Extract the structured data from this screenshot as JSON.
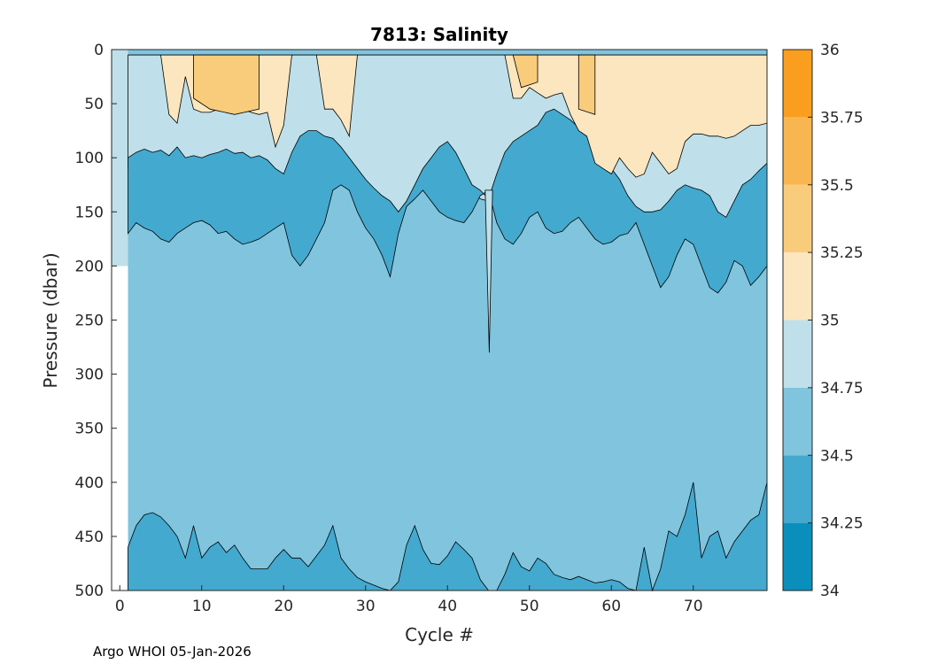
{
  "credit": "Argo WHOI 05-Jan-2026",
  "chart_data": {
    "type": "contourf",
    "title": "7813:  Salinity",
    "xlabel": "Cycle #",
    "ylabel": "Pressure (dbar)",
    "xlim": [
      -1,
      79
    ],
    "ylim": [
      0,
      500
    ],
    "y_reversed": true,
    "xticks": [
      "0",
      "10",
      "20",
      "30",
      "40",
      "50",
      "60",
      "70"
    ],
    "yticks": [
      "0",
      "50",
      "100",
      "150",
      "200",
      "250",
      "300",
      "350",
      "400",
      "450",
      "500"
    ],
    "colorbar": {
      "levels": [
        34,
        34.25,
        34.5,
        34.75,
        35,
        35.25,
        35.5,
        35.75,
        36
      ],
      "tick_labels": [
        "34",
        "34.25",
        "34.5",
        "34.75",
        "35",
        "35.25",
        "35.5",
        "35.75",
        "36"
      ],
      "colors": [
        "#0a8fbd",
        "#43a9cf",
        "#80c4de",
        "#bfe0ea",
        "#fce6bf",
        "#f9cc7c",
        "#f8b650",
        "#f99e1f"
      ]
    },
    "band_colors": {
      "high": "#f9cc7c",
      "mid_high": "#fce6bf",
      "mid": "#bfe0ea",
      "deep": "#80c4de",
      "low": "#43a9cf"
    },
    "boundaries": {
      "x": [
        1,
        2,
        3,
        4,
        5,
        6,
        7,
        8,
        9,
        10,
        11,
        12,
        13,
        14,
        15,
        16,
        17,
        18,
        19,
        20,
        21,
        22,
        23,
        24,
        25,
        26,
        27,
        28,
        29,
        30,
        31,
        32,
        33,
        34,
        35,
        36,
        37,
        38,
        39,
        40,
        41,
        42,
        43,
        44,
        45,
        46,
        47,
        48,
        49,
        50,
        51,
        52,
        53,
        54,
        55,
        56,
        57,
        58,
        59,
        60,
        61,
        62,
        63,
        64,
        65,
        66,
        67,
        68,
        69,
        70,
        71,
        72,
        73,
        74,
        75,
        76,
        77,
        78,
        79
      ],
      "upper_low_top": [
        100,
        95,
        92,
        95,
        93,
        98,
        90,
        100,
        98,
        100,
        97,
        95,
        92,
        96,
        95,
        100,
        98,
        102,
        110,
        115,
        95,
        80,
        75,
        75,
        80,
        82,
        90,
        100,
        110,
        120,
        128,
        135,
        140,
        150,
        140,
        125,
        110,
        100,
        90,
        85,
        95,
        110,
        125,
        130,
        138,
        115,
        95,
        85,
        80,
        75,
        70,
        58,
        55,
        60,
        65,
        72,
        80,
        90,
        100,
        110,
        120,
        135,
        145,
        150,
        150,
        148,
        140,
        130,
        125,
        128,
        130,
        135,
        150,
        155,
        140,
        125,
        120,
        112,
        105
      ],
      "upper_low_bottom": [
        170,
        160,
        165,
        168,
        175,
        178,
        170,
        165,
        160,
        158,
        162,
        170,
        168,
        175,
        180,
        178,
        175,
        170,
        165,
        160,
        190,
        200,
        190,
        175,
        160,
        130,
        125,
        130,
        150,
        165,
        175,
        190,
        210,
        170,
        145,
        138,
        130,
        140,
        150,
        155,
        158,
        160,
        150,
        135,
        130,
        160,
        175,
        180,
        170,
        155,
        150,
        165,
        170,
        168,
        160,
        155,
        165,
        175,
        180,
        178,
        172,
        170,
        160,
        180,
        200,
        220,
        210,
        190,
        175,
        180,
        200,
        220,
        225,
        215,
        195,
        200,
        218,
        210,
        200
      ],
      "mid_bottom": [
        110,
        100,
        96,
        100,
        102,
        108,
        100,
        112,
        110,
        112,
        108,
        105,
        100,
        106,
        108,
        112,
        110,
        115,
        120,
        122,
        112,
        100,
        95,
        92,
        95,
        96,
        100,
        108,
        118,
        125,
        132,
        138,
        142,
        150,
        145,
        135,
        120,
        112,
        100,
        95,
        102,
        115,
        130,
        138,
        140,
        125,
        110,
        100,
        95,
        90,
        85,
        75,
        70,
        75,
        80,
        88,
        95,
        100,
        110,
        118,
        128,
        140,
        150,
        155,
        156,
        152,
        146,
        140,
        135,
        138,
        140,
        145,
        155,
        160,
        150,
        140,
        132,
        125,
        120
      ],
      "surface_top": [
        5,
        5,
        5,
        5,
        5,
        5,
        5,
        5,
        5,
        5,
        5,
        5,
        5,
        5,
        5,
        5,
        5,
        5,
        5,
        5,
        5,
        5,
        5,
        5,
        5,
        5,
        5,
        5,
        5,
        5,
        5,
        5,
        5,
        5,
        5,
        5,
        5,
        5,
        5,
        5,
        5,
        5,
        5,
        5,
        5,
        5,
        5,
        5,
        5,
        5,
        5,
        5,
        5,
        5,
        5,
        5,
        5,
        5,
        5,
        5,
        5,
        5,
        5,
        5,
        5,
        5,
        5,
        5,
        5,
        5,
        5,
        5,
        5,
        5,
        5,
        5,
        5,
        5,
        5
      ],
      "warm_bottom": [
        5,
        5,
        5,
        5,
        5,
        60,
        68,
        25,
        55,
        58,
        58,
        55,
        52,
        50,
        55,
        58,
        60,
        58,
        90,
        70,
        5,
        5,
        5,
        5,
        55,
        55,
        65,
        80,
        5,
        5,
        5,
        5,
        5,
        5,
        5,
        5,
        5,
        5,
        5,
        5,
        5,
        5,
        5,
        5,
        5,
        5,
        5,
        45,
        45,
        35,
        40,
        45,
        42,
        40,
        60,
        75,
        80,
        105,
        110,
        115,
        100,
        110,
        118,
        115,
        95,
        105,
        115,
        110,
        85,
        78,
        78,
        80,
        80,
        82,
        80,
        75,
        70,
        70,
        68
      ],
      "deep_low_top": [
        460,
        440,
        430,
        428,
        432,
        440,
        450,
        470,
        440,
        470,
        460,
        455,
        465,
        458,
        470,
        480,
        480,
        480,
        470,
        462,
        470,
        470,
        478,
        468,
        458,
        440,
        470,
        480,
        488,
        492,
        495,
        498,
        500,
        492,
        458,
        440,
        462,
        475,
        476,
        468,
        455,
        462,
        470,
        490,
        500,
        500,
        485,
        465,
        478,
        482,
        470,
        475,
        485,
        488,
        490,
        487,
        490,
        493,
        492,
        490,
        492,
        498,
        500,
        460,
        500,
        480,
        445,
        450,
        430,
        400,
        470,
        450,
        445,
        470,
        455,
        445,
        435,
        430,
        400
      ]
    }
  }
}
